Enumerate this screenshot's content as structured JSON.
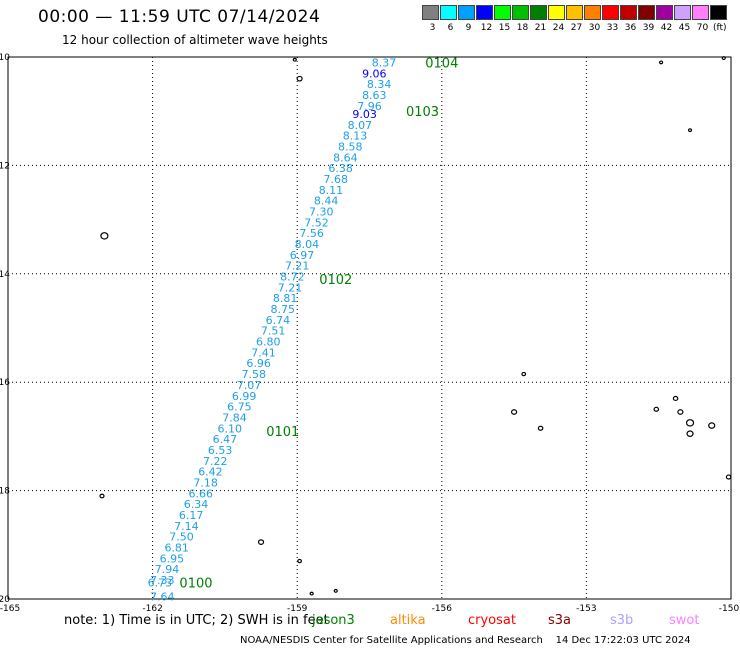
{
  "header": {
    "title": "00:00 — 11:59 UTC 07/14/2024",
    "subtitle": "12 hour collection of altimeter wave heights"
  },
  "legend": {
    "unit": "(ft)",
    "bins": [
      {
        "label": "3",
        "color": "#808080"
      },
      {
        "label": "6",
        "color": "#00ffff"
      },
      {
        "label": "9",
        "color": "#00a0ff"
      },
      {
        "label": "12",
        "color": "#0000ff"
      },
      {
        "label": "15",
        "color": "#00ff00"
      },
      {
        "label": "18",
        "color": "#00c000"
      },
      {
        "label": "21",
        "color": "#008000"
      },
      {
        "label": "24",
        "color": "#ffff00"
      },
      {
        "label": "27",
        "color": "#ffc000"
      },
      {
        "label": "30",
        "color": "#ff8000"
      },
      {
        "label": "33",
        "color": "#ff0000"
      },
      {
        "label": "36",
        "color": "#c00000"
      },
      {
        "label": "39",
        "color": "#800000"
      },
      {
        "label": "42",
        "color": "#a000a0"
      },
      {
        "label": "45",
        "color": "#d0a0ff"
      },
      {
        "label": "70",
        "color": "#ff80ff"
      },
      {
        "label": "",
        "color": "#000000"
      }
    ]
  },
  "map": {
    "lon_range": [
      -165,
      -150
    ],
    "lat_range": [
      -20,
      -10
    ],
    "lon_ticks": [
      "-165",
      "-162",
      "-159",
      "-156",
      "-153",
      "-150"
    ],
    "lat_ticks": [
      "-10",
      "-12",
      "-14",
      "-16",
      "-18",
      "-20"
    ],
    "grid": true,
    "colors": {
      "wave_label": "#1ea0e6",
      "wave_label_high": "#0000ff",
      "time_label": "#008000"
    },
    "pass_times": [
      {
        "label": "0104",
        "lon": -156.0,
        "lat": -10.1
      },
      {
        "label": "0103",
        "lon": -156.4,
        "lat": -11.0
      },
      {
        "label": "0102",
        "lon": -158.2,
        "lat": -14.1
      },
      {
        "label": "0101",
        "lon": -159.3,
        "lat": -16.9
      },
      {
        "label": "0100",
        "lon": -161.1,
        "lat": -19.7
      }
    ],
    "swh": [
      {
        "v": "8.37",
        "lon": -157.2,
        "lat": -10.1
      },
      {
        "v": "9.06",
        "lon": -157.4,
        "lat": -10.3
      },
      {
        "v": "8.34",
        "lon": -157.3,
        "lat": -10.5
      },
      {
        "v": "8.63",
        "lon": -157.4,
        "lat": -10.7
      },
      {
        "v": "7.96",
        "lon": -157.5,
        "lat": -10.9
      },
      {
        "v": "9.03",
        "lon": -157.6,
        "lat": -11.05
      },
      {
        "v": "8.07",
        "lon": -157.7,
        "lat": -11.25
      },
      {
        "v": "8.13",
        "lon": -157.8,
        "lat": -11.45
      },
      {
        "v": "8.58",
        "lon": -157.9,
        "lat": -11.65
      },
      {
        "v": "8.64",
        "lon": -158.0,
        "lat": -11.85
      },
      {
        "v": "6.38",
        "lon": -158.1,
        "lat": -12.05
      },
      {
        "v": "7.68",
        "lon": -158.2,
        "lat": -12.25
      },
      {
        "v": "8.11",
        "lon": -158.3,
        "lat": -12.45
      },
      {
        "v": "8.44",
        "lon": -158.4,
        "lat": -12.65
      },
      {
        "v": "7.30",
        "lon": -158.5,
        "lat": -12.85
      },
      {
        "v": "7.52",
        "lon": -158.6,
        "lat": -13.05
      },
      {
        "v": "7.56",
        "lon": -158.7,
        "lat": -13.25
      },
      {
        "v": "8.04",
        "lon": -158.8,
        "lat": -13.45
      },
      {
        "v": "6.97",
        "lon": -158.9,
        "lat": -13.65
      },
      {
        "v": "7.21",
        "lon": -159.0,
        "lat": -13.85
      },
      {
        "v": "8.72",
        "lon": -159.1,
        "lat": -14.05
      },
      {
        "v": "7.21",
        "lon": -159.15,
        "lat": -14.25
      },
      {
        "v": "8.81",
        "lon": -159.25,
        "lat": -14.45
      },
      {
        "v": "8.75",
        "lon": -159.3,
        "lat": -14.65
      },
      {
        "v": "6.74",
        "lon": -159.4,
        "lat": -14.85
      },
      {
        "v": "7.51",
        "lon": -159.5,
        "lat": -15.05
      },
      {
        "v": "6.80",
        "lon": -159.6,
        "lat": -15.25
      },
      {
        "v": "7.41",
        "lon": -159.7,
        "lat": -15.45
      },
      {
        "v": "6.96",
        "lon": -159.8,
        "lat": -15.65
      },
      {
        "v": "7.58",
        "lon": -159.9,
        "lat": -15.85
      },
      {
        "v": "7.07",
        "lon": -160.0,
        "lat": -16.05
      },
      {
        "v": "6.99",
        "lon": -160.1,
        "lat": -16.25
      },
      {
        "v": "6.75",
        "lon": -160.2,
        "lat": -16.45
      },
      {
        "v": "7.84",
        "lon": -160.3,
        "lat": -16.65
      },
      {
        "v": "6.10",
        "lon": -160.4,
        "lat": -16.85
      },
      {
        "v": "6.47",
        "lon": -160.5,
        "lat": -17.05
      },
      {
        "v": "6.53",
        "lon": -160.6,
        "lat": -17.25
      },
      {
        "v": "7.22",
        "lon": -160.7,
        "lat": -17.45
      },
      {
        "v": "6.42",
        "lon": -160.8,
        "lat": -17.65
      },
      {
        "v": "7.18",
        "lon": -160.9,
        "lat": -17.85
      },
      {
        "v": "6.66",
        "lon": -161.0,
        "lat": -18.05
      },
      {
        "v": "6.34",
        "lon": -161.1,
        "lat": -18.25
      },
      {
        "v": "6.17",
        "lon": -161.2,
        "lat": -18.45
      },
      {
        "v": "7.14",
        "lon": -161.3,
        "lat": -18.65
      },
      {
        "v": "7.50",
        "lon": -161.4,
        "lat": -18.85
      },
      {
        "v": "6.81",
        "lon": -161.5,
        "lat": -19.05
      },
      {
        "v": "6.95",
        "lon": -161.6,
        "lat": -19.25
      },
      {
        "v": "7.94",
        "lon": -161.7,
        "lat": -19.45
      },
      {
        "v": "7.33",
        "lon": -161.8,
        "lat": -19.65
      },
      {
        "v": "6.73",
        "lon": -161.85,
        "lat": -19.7
      },
      {
        "v": "7.64",
        "lon": -161.8,
        "lat": -19.95
      }
    ],
    "islands": [
      {
        "lon": -159.05,
        "lat": -10.05,
        "size": 1.5
      },
      {
        "lon": -158.95,
        "lat": -10.4,
        "size": 2.5
      },
      {
        "lon": -151.45,
        "lat": -10.1,
        "size": 1.5
      },
      {
        "lon": -150.15,
        "lat": -10.02,
        "size": 1.5
      },
      {
        "lon": -150.85,
        "lat": -11.35,
        "size": 1.5
      },
      {
        "lon": -163.0,
        "lat": -13.3,
        "size": 3.5
      },
      {
        "lon": -154.3,
        "lat": -15.85,
        "size": 1.8
      },
      {
        "lon": -154.5,
        "lat": -16.55,
        "size": 2.5
      },
      {
        "lon": -153.95,
        "lat": -16.85,
        "size": 2.2
      },
      {
        "lon": -151.55,
        "lat": -16.5,
        "size": 2.2
      },
      {
        "lon": -151.15,
        "lat": -16.3,
        "size": 2.2
      },
      {
        "lon": -151.05,
        "lat": -16.55,
        "size": 2.5
      },
      {
        "lon": -150.85,
        "lat": -16.75,
        "size": 3.5
      },
      {
        "lon": -150.85,
        "lat": -16.95,
        "size": 3
      },
      {
        "lon": -150.4,
        "lat": -16.8,
        "size": 3
      },
      {
        "lon": -150.05,
        "lat": -17.75,
        "size": 2.2
      },
      {
        "lon": -163.05,
        "lat": -18.1,
        "size": 2
      },
      {
        "lon": -159.75,
        "lat": -18.95,
        "size": 2.5
      },
      {
        "lon": -158.95,
        "lat": -19.3,
        "size": 1.8
      },
      {
        "lon": -158.7,
        "lat": -19.9,
        "size": 1.5
      },
      {
        "lon": -158.2,
        "lat": -19.85,
        "size": 1.5
      }
    ]
  },
  "footer": {
    "note": "note:  1) Time is in UTC;  2) SWH is in feet",
    "missions": [
      {
        "label": "jason3",
        "color": "#008000"
      },
      {
        "label": "altika",
        "color": "#ff8c00"
      },
      {
        "label": "cryosat",
        "color": "#ff0000"
      },
      {
        "label": "s3a",
        "color": "#800000"
      },
      {
        "label": "s3b",
        "color": "#b0a0ff"
      },
      {
        "label": "swot",
        "color": "#ff80ff"
      }
    ],
    "credit": "NOAA/NESDIS Center for Satellite Applications and Research",
    "generated": "14 Dec 17:22:03 UTC 2024"
  }
}
